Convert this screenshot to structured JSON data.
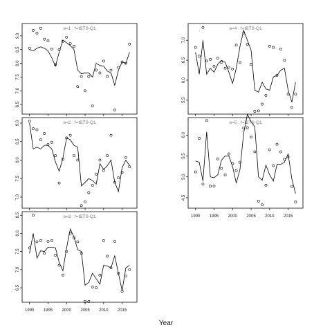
{
  "figure": {
    "xlabel": "Year"
  },
  "chart_data": [
    {
      "type": "scatter",
      "title": "a=1  :  f=IBTS-Q1",
      "xlim": [
        1988,
        2019
      ],
      "ylim": [
        6.15,
        9.45
      ],
      "yticks": [
        6.5,
        7.0,
        7.5,
        8.0,
        8.5,
        9.0
      ],
      "points": [
        [
          1990,
          8.55
        ],
        [
          1991,
          9.2
        ],
        [
          1992,
          9.1
        ],
        [
          1993,
          9.28
        ],
        [
          1994,
          8.88
        ],
        [
          1995,
          8.82
        ],
        [
          1996,
          8.52
        ],
        [
          1997,
          7.95
        ],
        [
          1998,
          8.5
        ],
        [
          1999,
          8.8
        ],
        [
          2000,
          8.95
        ],
        [
          2001,
          8.72
        ],
        [
          2002,
          8.62
        ],
        [
          2003,
          7.15
        ],
        [
          2004,
          7.52
        ],
        [
          2005,
          7.0
        ],
        [
          2006,
          7.52
        ],
        [
          2007,
          6.45
        ],
        [
          2008,
          7.75
        ],
        [
          2009,
          7.65
        ],
        [
          2010,
          8.08
        ],
        [
          2011,
          7.52
        ],
        [
          2012,
          7.75
        ],
        [
          2013,
          6.3
        ],
        [
          2014,
          7.85
        ],
        [
          2015,
          8.05
        ],
        [
          2016,
          8.0
        ],
        [
          2017,
          8.7
        ]
      ],
      "fitted": [
        [
          1990,
          8.5
        ],
        [
          1991,
          8.45
        ],
        [
          1992,
          8.55
        ],
        [
          1993,
          8.6
        ],
        [
          1994,
          8.55
        ],
        [
          1995,
          8.45
        ],
        [
          1996,
          8.2
        ],
        [
          1997,
          7.9
        ],
        [
          1998,
          8.4
        ],
        [
          1999,
          8.85
        ],
        [
          2000,
          8.75
        ],
        [
          2001,
          8.65
        ],
        [
          2002,
          8.5
        ],
        [
          2003,
          7.75
        ],
        [
          2004,
          7.62
        ],
        [
          2005,
          7.65
        ],
        [
          2006,
          7.65
        ],
        [
          2007,
          7.5
        ],
        [
          2008,
          8.0
        ],
        [
          2009,
          7.92
        ],
        [
          2010,
          7.9
        ],
        [
          2011,
          7.72
        ],
        [
          2012,
          7.65
        ],
        [
          2013,
          7.2
        ],
        [
          2014,
          7.75
        ],
        [
          2015,
          8.05
        ],
        [
          2016,
          8.0
        ],
        [
          2017,
          8.4
        ]
      ]
    },
    {
      "type": "scatter",
      "title": "a=2  :  f=IBTS-Q1",
      "xlim": [
        1988,
        2019
      ],
      "ylim": [
        6.7,
        9.15
      ],
      "yticks": [
        7.0,
        7.5,
        8.0,
        8.5,
        9.0
      ],
      "points": [
        [
          1990,
          9.05
        ],
        [
          1991,
          8.85
        ],
        [
          1992,
          8.82
        ],
        [
          1993,
          8.55
        ],
        [
          1994,
          8.72
        ],
        [
          1995,
          8.42
        ],
        [
          1996,
          8.48
        ],
        [
          1997,
          8.12
        ],
        [
          1998,
          7.38
        ],
        [
          1999,
          8.02
        ],
        [
          2000,
          8.6
        ],
        [
          2001,
          8.67
        ],
        [
          2002,
          8.12
        ],
        [
          2003,
          8.0
        ],
        [
          2004,
          6.77
        ],
        [
          2005,
          6.87
        ],
        [
          2006,
          7.12
        ],
        [
          2007,
          7.32
        ],
        [
          2008,
          7.62
        ],
        [
          2009,
          8.0
        ],
        [
          2010,
          7.72
        ],
        [
          2011,
          8.12
        ],
        [
          2012,
          8.67
        ],
        [
          2013,
          7.4
        ],
        [
          2014,
          7.52
        ],
        [
          2015,
          7.67
        ],
        [
          2016,
          8.07
        ],
        [
          2017,
          7.82
        ]
      ],
      "fitted": [
        [
          1990,
          9.0
        ],
        [
          1991,
          8.3
        ],
        [
          1992,
          8.35
        ],
        [
          1993,
          8.3
        ],
        [
          1994,
          8.4
        ],
        [
          1995,
          8.4
        ],
        [
          1996,
          8.3
        ],
        [
          1997,
          7.95
        ],
        [
          1998,
          7.7
        ],
        [
          1999,
          8.05
        ],
        [
          2000,
          8.6
        ],
        [
          2001,
          8.55
        ],
        [
          2002,
          8.4
        ],
        [
          2003,
          8.35
        ],
        [
          2004,
          7.3
        ],
        [
          2005,
          7.4
        ],
        [
          2006,
          7.5
        ],
        [
          2007,
          7.45
        ],
        [
          2008,
          7.35
        ],
        [
          2009,
          7.9
        ],
        [
          2010,
          7.75
        ],
        [
          2011,
          7.85
        ],
        [
          2012,
          8.0
        ],
        [
          2013,
          7.4
        ],
        [
          2014,
          7.15
        ],
        [
          2015,
          7.8
        ],
        [
          2016,
          8.0
        ],
        [
          2017,
          7.85
        ]
      ]
    },
    {
      "type": "scatter",
      "title": "a=3  :  f=IBTS-Q1",
      "xlim": [
        1988,
        2019
      ],
      "ylim": [
        6.1,
        8.6
      ],
      "yticks": [
        6.5,
        7.0,
        7.5,
        8.0,
        8.5
      ],
      "points": [
        [
          1990,
          7.6
        ],
        [
          1991,
          8.5
        ],
        [
          1992,
          7.77
        ],
        [
          1993,
          7.8
        ],
        [
          1994,
          7.45
        ],
        [
          1995,
          7.78
        ],
        [
          1996,
          7.8
        ],
        [
          1997,
          7.4
        ],
        [
          1998,
          7.12
        ],
        [
          1999,
          6.85
        ],
        [
          2000,
          7.5
        ],
        [
          2001,
          8.0
        ],
        [
          2002,
          7.88
        ],
        [
          2003,
          7.77
        ],
        [
          2004,
          7.45
        ],
        [
          2005,
          6.12
        ],
        [
          2006,
          6.12
        ],
        [
          2007,
          6.52
        ],
        [
          2008,
          6.5
        ],
        [
          2009,
          6.85
        ],
        [
          2010,
          7.8
        ],
        [
          2011,
          7.37
        ],
        [
          2012,
          7.05
        ],
        [
          2013,
          7.78
        ],
        [
          2014,
          6.9
        ],
        [
          2015,
          6.4
        ],
        [
          2016,
          6.82
        ],
        [
          2017,
          7.0
        ]
      ],
      "fitted": [
        [
          1990,
          7.45
        ],
        [
          1991,
          8.0
        ],
        [
          1992,
          7.32
        ],
        [
          1993,
          7.52
        ],
        [
          1994,
          7.5
        ],
        [
          1995,
          7.62
        ],
        [
          1996,
          7.62
        ],
        [
          1997,
          7.6
        ],
        [
          1998,
          7.2
        ],
        [
          1999,
          6.97
        ],
        [
          2000,
          7.6
        ],
        [
          2001,
          8.12
        ],
        [
          2002,
          7.9
        ],
        [
          2003,
          7.55
        ],
        [
          2004,
          7.5
        ],
        [
          2005,
          6.57
        ],
        [
          2006,
          6.65
        ],
        [
          2007,
          6.9
        ],
        [
          2008,
          6.75
        ],
        [
          2009,
          6.6
        ],
        [
          2010,
          7.12
        ],
        [
          2011,
          7.1
        ],
        [
          2012,
          7.05
        ],
        [
          2013,
          7.38
        ],
        [
          2014,
          6.9
        ],
        [
          2015,
          6.42
        ],
        [
          2016,
          7.05
        ],
        [
          2017,
          7.12
        ]
      ]
    },
    {
      "type": "scatter",
      "title": "a=4  :  f=IBTS-Q1",
      "xlim": [
        1988,
        2019
      ],
      "ylim": [
        5.15,
        7.42
      ],
      "yticks": [
        5.5,
        6.0,
        6.5,
        7.0
      ],
      "points": [
        [
          1990,
          6.82
        ],
        [
          1991,
          6.6
        ],
        [
          1992,
          7.32
        ],
        [
          1993,
          6.48
        ],
        [
          1994,
          6.52
        ],
        [
          1995,
          6.35
        ],
        [
          1996,
          6.55
        ],
        [
          1997,
          6.45
        ],
        [
          1998,
          6.3
        ],
        [
          1999,
          6.32
        ],
        [
          2000,
          6.28
        ],
        [
          2001,
          6.88
        ],
        [
          2002,
          6.45
        ],
        [
          2003,
          7.18
        ],
        [
          2004,
          6.9
        ],
        [
          2005,
          6.4
        ],
        [
          2006,
          5.22
        ],
        [
          2007,
          5.23
        ],
        [
          2008,
          5.4
        ],
        [
          2009,
          5.62
        ],
        [
          2010,
          6.85
        ],
        [
          2011,
          6.82
        ],
        [
          2012,
          6.12
        ],
        [
          2013,
          6.78
        ],
        [
          2014,
          6.5
        ],
        [
          2015,
          5.65
        ],
        [
          2016,
          5.32
        ],
        [
          2017,
          5.65
        ]
      ],
      "fitted": [
        [
          1990,
          6.7
        ],
        [
          1991,
          6.15
        ],
        [
          1992,
          7.0
        ],
        [
          1993,
          6.15
        ],
        [
          1994,
          6.3
        ],
        [
          1995,
          6.2
        ],
        [
          1996,
          6.4
        ],
        [
          1997,
          6.5
        ],
        [
          1998,
          6.45
        ],
        [
          1999,
          6.2
        ],
        [
          2000,
          5.92
        ],
        [
          2001,
          6.3
        ],
        [
          2002,
          6.85
        ],
        [
          2003,
          7.25
        ],
        [
          2004,
          7.0
        ],
        [
          2005,
          6.75
        ],
        [
          2006,
          5.75
        ],
        [
          2007,
          5.7
        ],
        [
          2008,
          5.95
        ],
        [
          2009,
          5.78
        ],
        [
          2010,
          5.75
        ],
        [
          2011,
          6.08
        ],
        [
          2012,
          6.12
        ],
        [
          2013,
          6.25
        ],
        [
          2014,
          6.3
        ],
        [
          2015,
          5.75
        ],
        [
          2016,
          5.45
        ],
        [
          2017,
          5.95
        ]
      ]
    },
    {
      "type": "scatter",
      "title": "a=5  :  f=IBTS-Q1",
      "xlim": [
        1988,
        2019
      ],
      "ylim": [
        4.25,
        6.42
      ],
      "yticks": [
        4.5,
        5.0,
        5.5,
        6.0
      ],
      "points": [
        [
          1990,
          5.12
        ],
        [
          1991,
          5.92
        ],
        [
          1992,
          4.83
        ],
        [
          1993,
          6.35
        ],
        [
          1994,
          4.78
        ],
        [
          1995,
          4.78
        ],
        [
          1996,
          5.43
        ],
        [
          1997,
          5.2
        ],
        [
          1998,
          5.05
        ],
        [
          1999,
          5.55
        ],
        [
          2000,
          5.32
        ],
        [
          2001,
          5.15
        ],
        [
          2002,
          5.35
        ],
        [
          2003,
          6.17
        ],
        [
          2004,
          6.18
        ],
        [
          2005,
          5.95
        ],
        [
          2006,
          5.6
        ],
        [
          2007,
          4.42
        ],
        [
          2008,
          4.33
        ],
        [
          2009,
          4.8
        ],
        [
          2010,
          5.65
        ],
        [
          2011,
          5.27
        ],
        [
          2012,
          5.78
        ],
        [
          2013,
          5.6
        ],
        [
          2014,
          5.42
        ],
        [
          2015,
          5.48
        ],
        [
          2016,
          4.77
        ],
        [
          2017,
          4.4
        ]
      ],
      "fitted": [
        [
          1990,
          5.38
        ],
        [
          1991,
          5.35
        ],
        [
          1992,
          4.9
        ],
        [
          1993,
          6.08
        ],
        [
          1994,
          5.0
        ],
        [
          1995,
          4.98
        ],
        [
          1996,
          5.05
        ],
        [
          1997,
          5.4
        ],
        [
          1998,
          5.5
        ],
        [
          1999,
          5.5
        ],
        [
          2000,
          5.25
        ],
        [
          2001,
          4.85
        ],
        [
          2002,
          5.18
        ],
        [
          2003,
          6.05
        ],
        [
          2004,
          6.5
        ],
        [
          2005,
          6.32
        ],
        [
          2006,
          6.2
        ],
        [
          2007,
          5.0
        ],
        [
          2008,
          4.92
        ],
        [
          2009,
          5.28
        ],
        [
          2010,
          5.05
        ],
        [
          2011,
          4.9
        ],
        [
          2012,
          5.3
        ],
        [
          2013,
          5.3
        ],
        [
          2014,
          5.35
        ],
        [
          2015,
          5.55
        ],
        [
          2016,
          4.95
        ],
        [
          2017,
          4.6
        ]
      ]
    }
  ],
  "xticks": [
    1990,
    1995,
    2000,
    2005,
    2010,
    2015
  ]
}
